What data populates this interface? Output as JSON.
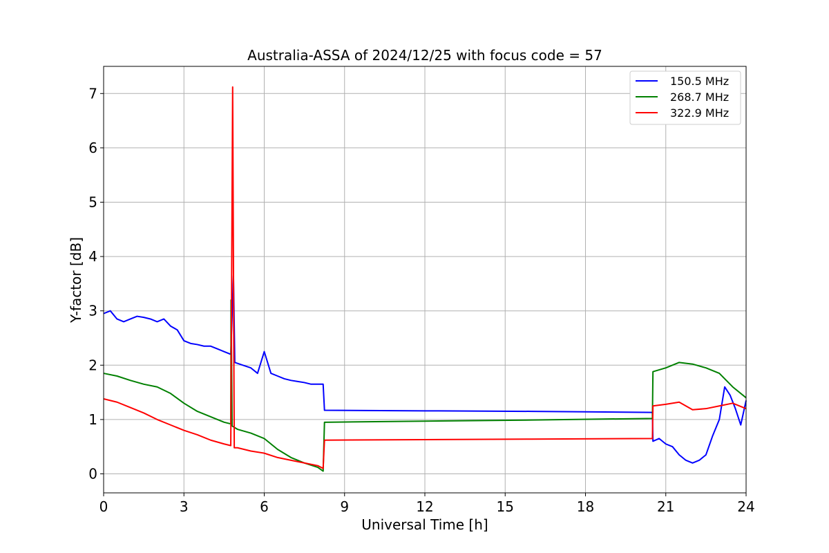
{
  "chart_data": {
    "type": "line",
    "title": "Australia-ASSA of 2024/12/25 with focus code = 57",
    "xlabel": "Universal Time [h]",
    "ylabel": "Y-factor [dB]",
    "xlim": [
      0,
      24
    ],
    "ylim": [
      -0.35,
      7.5
    ],
    "xticks": [
      0,
      3,
      6,
      9,
      12,
      15,
      18,
      21,
      24
    ],
    "xtick_labels": [
      "0",
      "3",
      "6",
      "9",
      "12",
      "15",
      "18",
      "21",
      "24"
    ],
    "yticks": [
      0,
      1,
      2,
      3,
      4,
      5,
      6,
      7
    ],
    "ytick_labels": [
      "0",
      "1",
      "2",
      "3",
      "4",
      "5",
      "6",
      "7"
    ],
    "grid": true,
    "legend_position": "top-right",
    "series": [
      {
        "name": "150.5 MHz",
        "color": "#0000ff",
        "points": [
          [
            0,
            2.95
          ],
          [
            0.25,
            3.0
          ],
          [
            0.5,
            2.85
          ],
          [
            0.75,
            2.8
          ],
          [
            1.0,
            2.85
          ],
          [
            1.25,
            2.9
          ],
          [
            1.5,
            2.88
          ],
          [
            1.75,
            2.85
          ],
          [
            2.0,
            2.8
          ],
          [
            2.25,
            2.85
          ],
          [
            2.5,
            2.72
          ],
          [
            2.75,
            2.65
          ],
          [
            3.0,
            2.45
          ],
          [
            3.25,
            2.4
          ],
          [
            3.5,
            2.38
          ],
          [
            3.75,
            2.35
          ],
          [
            4.0,
            2.35
          ],
          [
            4.25,
            2.3
          ],
          [
            4.5,
            2.25
          ],
          [
            4.75,
            2.2
          ],
          [
            4.85,
            3.65
          ],
          [
            4.9,
            2.05
          ],
          [
            5.2,
            2.0
          ],
          [
            5.5,
            1.95
          ],
          [
            5.75,
            1.85
          ],
          [
            6.0,
            2.25
          ],
          [
            6.25,
            1.85
          ],
          [
            6.5,
            1.8
          ],
          [
            6.75,
            1.75
          ],
          [
            7.0,
            1.72
          ],
          [
            7.25,
            1.7
          ],
          [
            7.5,
            1.68
          ],
          [
            7.75,
            1.65
          ],
          [
            8.0,
            1.65
          ],
          [
            8.2,
            1.65
          ],
          [
            8.25,
            1.17
          ],
          [
            12.0,
            1.16
          ],
          [
            16.0,
            1.15
          ],
          [
            20.5,
            1.13
          ],
          [
            20.52,
            0.6
          ],
          [
            20.75,
            0.65
          ],
          [
            21.0,
            0.55
          ],
          [
            21.25,
            0.5
          ],
          [
            21.5,
            0.35
          ],
          [
            21.75,
            0.25
          ],
          [
            22.0,
            0.2
          ],
          [
            22.25,
            0.25
          ],
          [
            22.5,
            0.35
          ],
          [
            22.75,
            0.7
          ],
          [
            23.0,
            1.0
          ],
          [
            23.2,
            1.6
          ],
          [
            23.4,
            1.45
          ],
          [
            23.6,
            1.2
          ],
          [
            23.8,
            0.9
          ],
          [
            24.0,
            1.35
          ]
        ]
      },
      {
        "name": "268.7 MHz",
        "color": "#008000",
        "points": [
          [
            0,
            1.85
          ],
          [
            0.5,
            1.8
          ],
          [
            1.0,
            1.72
          ],
          [
            1.5,
            1.65
          ],
          [
            2.0,
            1.6
          ],
          [
            2.5,
            1.48
          ],
          [
            3.0,
            1.3
          ],
          [
            3.5,
            1.15
          ],
          [
            4.0,
            1.05
          ],
          [
            4.5,
            0.95
          ],
          [
            4.75,
            0.92
          ],
          [
            4.76,
            3.2
          ],
          [
            4.8,
            0.88
          ],
          [
            5.0,
            0.82
          ],
          [
            5.5,
            0.75
          ],
          [
            6.0,
            0.65
          ],
          [
            6.5,
            0.45
          ],
          [
            7.0,
            0.3
          ],
          [
            7.5,
            0.2
          ],
          [
            8.0,
            0.12
          ],
          [
            8.2,
            0.05
          ],
          [
            8.25,
            0.95
          ],
          [
            12.0,
            0.97
          ],
          [
            16.0,
            0.99
          ],
          [
            20.5,
            1.02
          ],
          [
            20.52,
            1.88
          ],
          [
            21.0,
            1.95
          ],
          [
            21.5,
            2.05
          ],
          [
            22.0,
            2.02
          ],
          [
            22.5,
            1.95
          ],
          [
            23.0,
            1.85
          ],
          [
            23.5,
            1.6
          ],
          [
            24.0,
            1.4
          ]
        ]
      },
      {
        "name": "322.9 MHz",
        "color": "#ff0000",
        "points": [
          [
            0,
            1.38
          ],
          [
            0.5,
            1.32
          ],
          [
            1.0,
            1.22
          ],
          [
            1.5,
            1.12
          ],
          [
            2.0,
            1.0
          ],
          [
            2.5,
            0.9
          ],
          [
            3.0,
            0.8
          ],
          [
            3.5,
            0.72
          ],
          [
            4.0,
            0.62
          ],
          [
            4.5,
            0.55
          ],
          [
            4.75,
            0.52
          ],
          [
            4.82,
            7.12
          ],
          [
            4.88,
            0.48
          ],
          [
            5.0,
            0.48
          ],
          [
            5.5,
            0.42
          ],
          [
            6.0,
            0.38
          ],
          [
            6.5,
            0.3
          ],
          [
            7.0,
            0.25
          ],
          [
            7.5,
            0.2
          ],
          [
            8.0,
            0.15
          ],
          [
            8.2,
            0.1
          ],
          [
            8.25,
            0.62
          ],
          [
            12.0,
            0.63
          ],
          [
            16.0,
            0.64
          ],
          [
            20.5,
            0.65
          ],
          [
            20.52,
            1.25
          ],
          [
            21.0,
            1.28
          ],
          [
            21.5,
            1.32
          ],
          [
            22.0,
            1.18
          ],
          [
            22.5,
            1.2
          ],
          [
            23.0,
            1.25
          ],
          [
            23.5,
            1.3
          ],
          [
            24.0,
            1.2
          ]
        ]
      }
    ]
  }
}
